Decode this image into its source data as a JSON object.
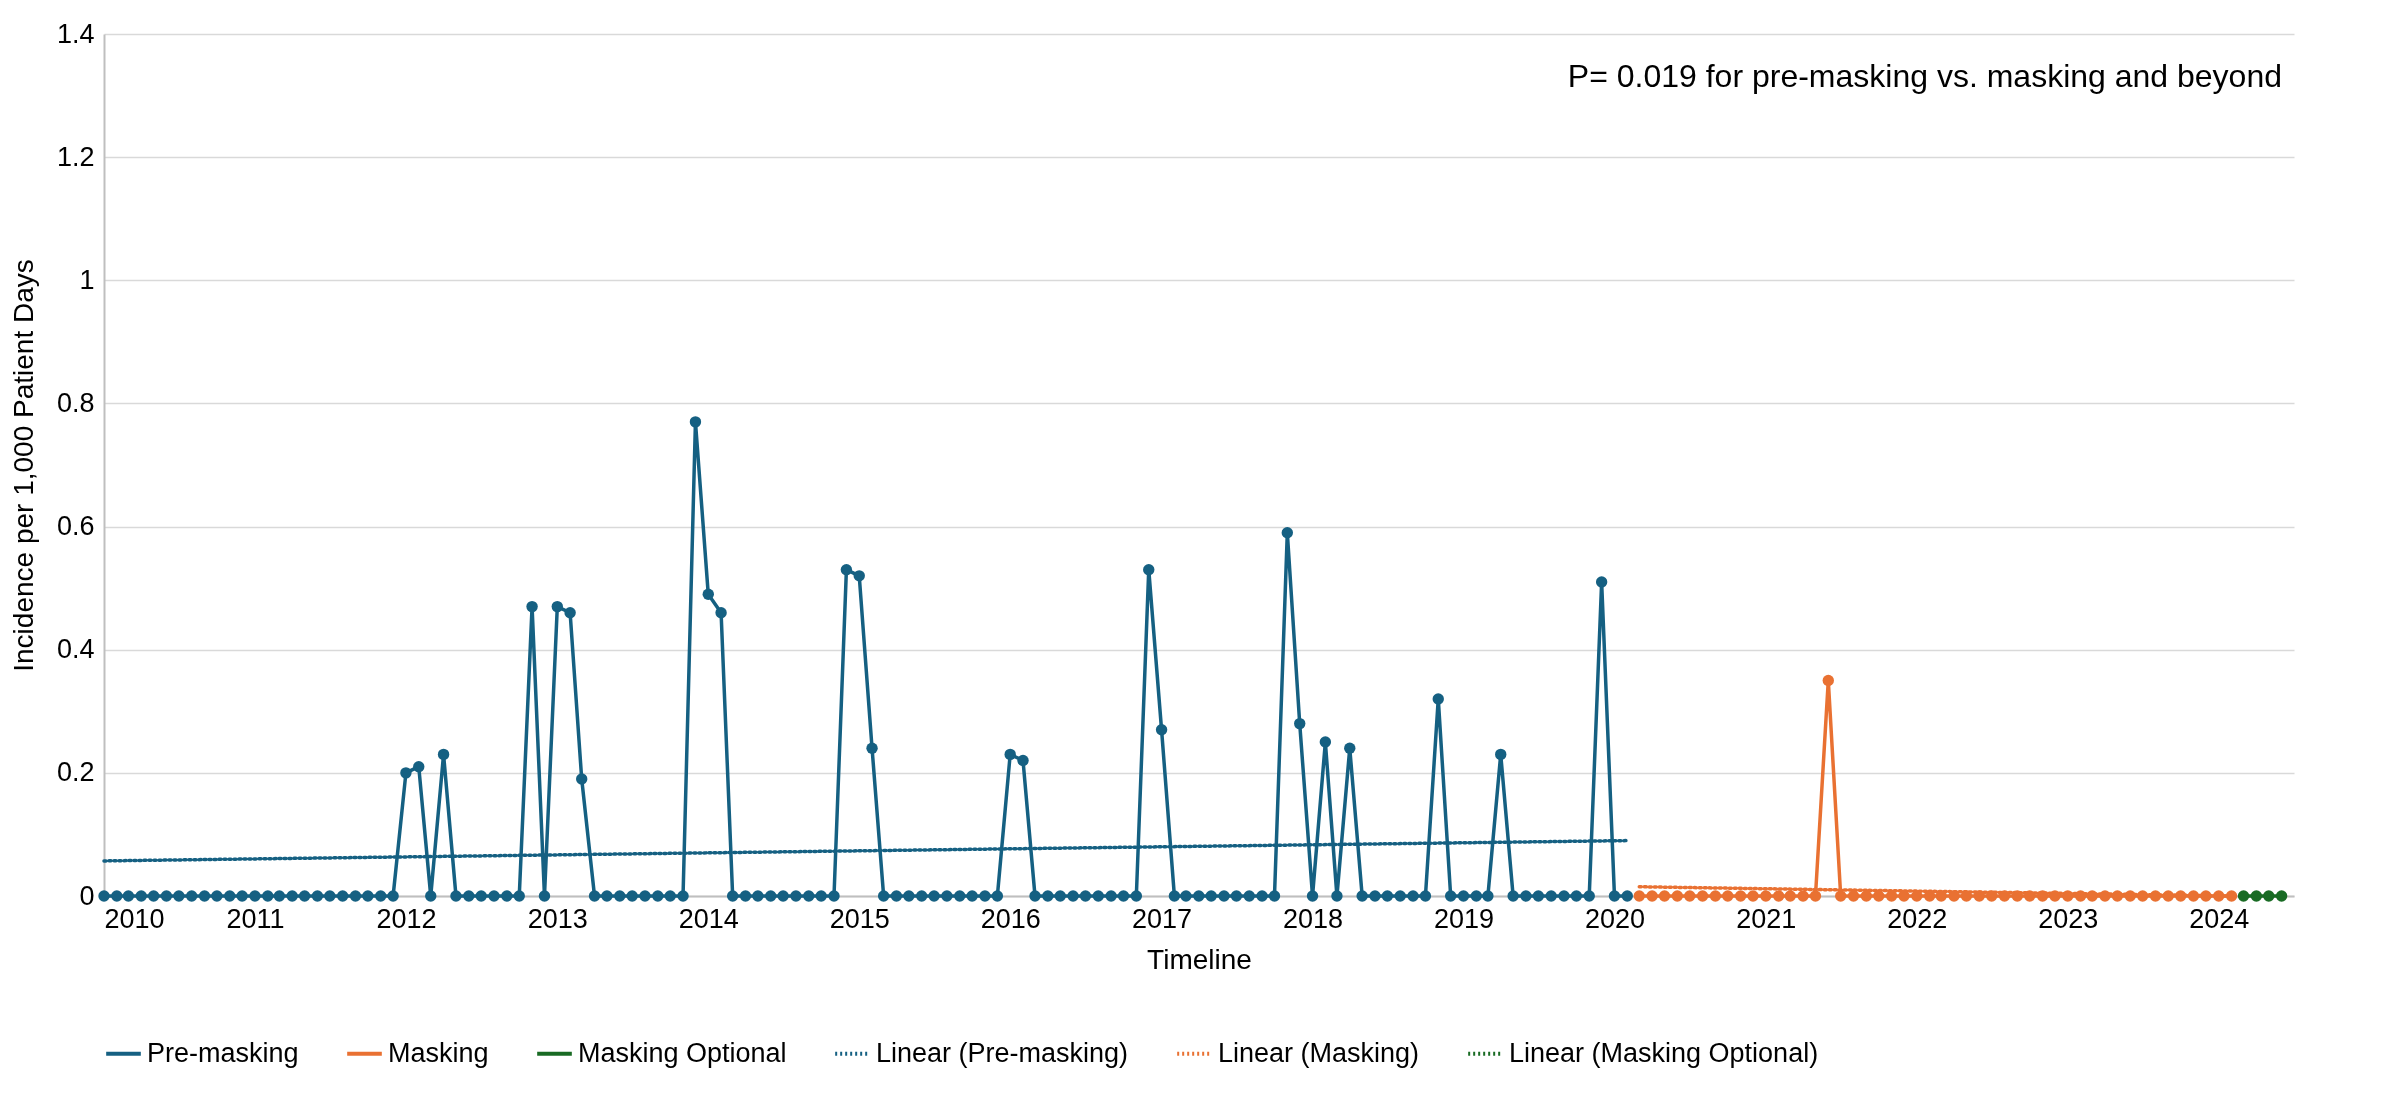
{
  "chart_data": {
    "type": "line",
    "xlabel": "Timeline",
    "ylabel": "Incidence per 1,000 Patient Days",
    "annotations": [
      "P= 0.019 for pre-masking vs. masking and beyond"
    ],
    "x": [
      "2010-01",
      "2010-02",
      "2010-03",
      "2010-04",
      "2010-05",
      "2010-06",
      "2010-07",
      "2010-08",
      "2010-09",
      "2010-10",
      "2010-11",
      "2010-12",
      "2011-01",
      "2011-02",
      "2011-03",
      "2011-04",
      "2011-05",
      "2011-06",
      "2011-07",
      "2011-08",
      "2011-09",
      "2011-10",
      "2011-11",
      "2011-12",
      "2012-01",
      "2012-02",
      "2012-03",
      "2012-04",
      "2012-05",
      "2012-06",
      "2012-07",
      "2012-08",
      "2012-09",
      "2012-10",
      "2012-11",
      "2012-12",
      "2013-01",
      "2013-02",
      "2013-03",
      "2013-04",
      "2013-05",
      "2013-06",
      "2013-07",
      "2013-08",
      "2013-09",
      "2013-10",
      "2013-11",
      "2013-12",
      "2014-01",
      "2014-02",
      "2014-03",
      "2014-04",
      "2014-05",
      "2014-06",
      "2014-07",
      "2014-08",
      "2014-09",
      "2014-10",
      "2014-11",
      "2014-12",
      "2015-01",
      "2015-02",
      "2015-03",
      "2015-04",
      "2015-05",
      "2015-06",
      "2015-07",
      "2015-08",
      "2015-09",
      "2015-10",
      "2015-11",
      "2015-12",
      "2016-01",
      "2016-02",
      "2016-03",
      "2016-04",
      "2016-05",
      "2016-06",
      "2016-07",
      "2016-08",
      "2016-09",
      "2016-10",
      "2016-11",
      "2016-12",
      "2017-01",
      "2017-02",
      "2017-03",
      "2017-04",
      "2017-05",
      "2017-06",
      "2017-07",
      "2017-08",
      "2017-09",
      "2017-10",
      "2017-11",
      "2017-12",
      "2018-01",
      "2018-02",
      "2018-03",
      "2018-04",
      "2018-05",
      "2018-06",
      "2018-07",
      "2018-08",
      "2018-09",
      "2018-10",
      "2018-11",
      "2018-12",
      "2019-01",
      "2019-02",
      "2019-03",
      "2019-04",
      "2019-05",
      "2019-06",
      "2019-07",
      "2019-08",
      "2019-09",
      "2019-10",
      "2019-11",
      "2019-12",
      "2020-01",
      "2020-02",
      "2020-03",
      "2020-04",
      "2020-05",
      "2020-06",
      "2020-07",
      "2020-08",
      "2020-09",
      "2020-10",
      "2020-11",
      "2020-12",
      "2021-01",
      "2021-02",
      "2021-03",
      "2021-04",
      "2021-05",
      "2021-06",
      "2021-07",
      "2021-08",
      "2021-09",
      "2021-10",
      "2021-11",
      "2021-12",
      "2022-01",
      "2022-02",
      "2022-03",
      "2022-04",
      "2022-05",
      "2022-06",
      "2022-07",
      "2022-08",
      "2022-09",
      "2022-10",
      "2022-11",
      "2022-12",
      "2023-01",
      "2023-02",
      "2023-03",
      "2023-04",
      "2023-05",
      "2023-06",
      "2023-07",
      "2023-08",
      "2023-09",
      "2023-10",
      "2023-11",
      "2023-12",
      "2024-01",
      "2024-02",
      "2024-03",
      "2024-04",
      "2024-05",
      "2024-06"
    ],
    "series": [
      {
        "name": "Pre-masking",
        "color": "#156082",
        "marker": "circle",
        "line_style": "solid",
        "values": [
          0,
          0,
          0,
          0,
          0,
          0,
          0,
          0,
          0,
          0,
          0,
          0,
          0,
          0,
          0,
          0,
          0,
          0,
          0,
          0,
          0,
          0,
          0,
          0,
          0.2,
          0.21,
          0,
          0.23,
          0,
          0,
          0,
          0,
          0,
          0,
          0.47,
          0,
          0.47,
          0.46,
          0.19,
          0,
          0,
          0,
          0,
          0,
          0,
          0,
          0,
          0.77,
          0.49,
          0.46,
          0,
          0,
          0,
          0,
          0,
          0,
          0,
          0,
          0,
          0.53,
          0.52,
          0.24,
          0,
          0,
          0,
          0,
          0,
          0,
          0,
          0,
          0,
          0,
          0.23,
          0.22,
          0,
          0,
          0,
          0,
          0,
          0,
          0,
          0,
          0,
          0.53,
          0.27,
          0,
          0,
          0,
          0,
          0,
          0,
          0,
          0,
          0,
          0.59,
          0.28,
          0,
          0.25,
          0,
          0.24,
          0,
          0,
          0,
          0,
          0,
          0,
          0.32,
          0,
          0,
          0,
          0,
          0.23,
          0,
          0,
          0,
          0,
          0,
          0,
          0,
          0.51,
          0,
          0,
          null,
          null,
          null,
          null,
          null,
          null,
          null,
          null,
          null,
          null,
          null,
          null,
          null,
          null,
          null,
          null,
          null,
          null,
          null,
          null,
          null,
          null,
          null,
          null,
          null,
          null,
          null,
          null,
          null,
          null,
          null,
          null,
          null,
          null,
          null,
          null,
          null,
          null,
          null,
          null,
          null,
          null,
          null,
          null,
          null,
          null,
          null,
          null,
          null,
          null,
          null,
          null
        ]
      },
      {
        "name": "Masking",
        "color": "#e97132",
        "marker": "circle",
        "line_style": "solid",
        "values": [
          null,
          null,
          null,
          null,
          null,
          null,
          null,
          null,
          null,
          null,
          null,
          null,
          null,
          null,
          null,
          null,
          null,
          null,
          null,
          null,
          null,
          null,
          null,
          null,
          null,
          null,
          null,
          null,
          null,
          null,
          null,
          null,
          null,
          null,
          null,
          null,
          null,
          null,
          null,
          null,
          null,
          null,
          null,
          null,
          null,
          null,
          null,
          null,
          null,
          null,
          null,
          null,
          null,
          null,
          null,
          null,
          null,
          null,
          null,
          null,
          null,
          null,
          null,
          null,
          null,
          null,
          null,
          null,
          null,
          null,
          null,
          null,
          null,
          null,
          null,
          null,
          null,
          null,
          null,
          null,
          null,
          null,
          null,
          null,
          null,
          null,
          null,
          null,
          null,
          null,
          null,
          null,
          null,
          null,
          null,
          null,
          null,
          null,
          null,
          null,
          null,
          null,
          null,
          null,
          null,
          null,
          null,
          null,
          null,
          null,
          null,
          null,
          null,
          null,
          null,
          null,
          null,
          null,
          null,
          null,
          null,
          null,
          0,
          0,
          0,
          0,
          0,
          0,
          0,
          0,
          0,
          0,
          0,
          0,
          0,
          0,
          0,
          0.35,
          0,
          0,
          0,
          0,
          0,
          0,
          0,
          0,
          0,
          0,
          0,
          0,
          0,
          0,
          0,
          0,
          0,
          0,
          0,
          0,
          0,
          0,
          0,
          0,
          0,
          0,
          0,
          0,
          0,
          0,
          0,
          0,
          null,
          null,
          null,
          null
        ]
      },
      {
        "name": "Masking Optional",
        "color": "#196b24",
        "marker": "circle",
        "line_style": "solid",
        "values": [
          null,
          null,
          null,
          null,
          null,
          null,
          null,
          null,
          null,
          null,
          null,
          null,
          null,
          null,
          null,
          null,
          null,
          null,
          null,
          null,
          null,
          null,
          null,
          null,
          null,
          null,
          null,
          null,
          null,
          null,
          null,
          null,
          null,
          null,
          null,
          null,
          null,
          null,
          null,
          null,
          null,
          null,
          null,
          null,
          null,
          null,
          null,
          null,
          null,
          null,
          null,
          null,
          null,
          null,
          null,
          null,
          null,
          null,
          null,
          null,
          null,
          null,
          null,
          null,
          null,
          null,
          null,
          null,
          null,
          null,
          null,
          null,
          null,
          null,
          null,
          null,
          null,
          null,
          null,
          null,
          null,
          null,
          null,
          null,
          null,
          null,
          null,
          null,
          null,
          null,
          null,
          null,
          null,
          null,
          null,
          null,
          null,
          null,
          null,
          null,
          null,
          null,
          null,
          null,
          null,
          null,
          null,
          null,
          null,
          null,
          null,
          null,
          null,
          null,
          null,
          null,
          null,
          null,
          null,
          null,
          null,
          null,
          null,
          null,
          null,
          null,
          null,
          null,
          null,
          null,
          null,
          null,
          null,
          null,
          null,
          null,
          null,
          null,
          null,
          null,
          null,
          null,
          null,
          null,
          null,
          null,
          null,
          null,
          null,
          null,
          null,
          null,
          null,
          null,
          null,
          null,
          null,
          null,
          null,
          null,
          null,
          null,
          null,
          null,
          null,
          null,
          null,
          null,
          null,
          null,
          0,
          0,
          0,
          0
        ]
      },
      {
        "name": "Linear (Pre-masking)",
        "color": "#156082",
        "marker": "none",
        "line_style": "dotted",
        "x": [
          "2010-01",
          "2020-02"
        ],
        "values": [
          0.057,
          0.09
        ]
      },
      {
        "name": "Linear (Masking)",
        "color": "#e97132",
        "marker": "none",
        "line_style": "dotted",
        "x": [
          "2020-03",
          "2024-02"
        ],
        "values": [
          0.015,
          0
        ]
      },
      {
        "name": "Linear (Masking Optional)",
        "color": "#196b24",
        "line_style": "dotted",
        "values": [
          null,
          null,
          null,
          null,
          null,
          null,
          null,
          null,
          null,
          null,
          null,
          null,
          null,
          null,
          null,
          null,
          null,
          null,
          null,
          null,
          null,
          null,
          null,
          null,
          null,
          null,
          null,
          null,
          null,
          null,
          null,
          null,
          null,
          null,
          null,
          null,
          null,
          null,
          null,
          null,
          null,
          null,
          null,
          null,
          null,
          null,
          null,
          null,
          null,
          null,
          null,
          null,
          null,
          null,
          null,
          null,
          null,
          null,
          null,
          null,
          null,
          null,
          null,
          null,
          null,
          null,
          null,
          null,
          null,
          null,
          null,
          null,
          null,
          null,
          null,
          null,
          null,
          null,
          null,
          null,
          null,
          null,
          null,
          null,
          null,
          null,
          null,
          null,
          null,
          null,
          null,
          null,
          null,
          null,
          null,
          null,
          null,
          null,
          null,
          null,
          null,
          null,
          null,
          null,
          null,
          null,
          null,
          null,
          null,
          null,
          null,
          null,
          null,
          null,
          null,
          null,
          null,
          null,
          null,
          null,
          null,
          null,
          null,
          null,
          null,
          null,
          null,
          null,
          null,
          null,
          null,
          null,
          null,
          null,
          null,
          null,
          null,
          null,
          null,
          null,
          null,
          null,
          null,
          null,
          null,
          null,
          null,
          null,
          null,
          null,
          null,
          null,
          null,
          null,
          null,
          null,
          null,
          null,
          null,
          null,
          null,
          null,
          null,
          null,
          null,
          null,
          null,
          null,
          null,
          null,
          null,
          null,
          null,
          null
        ]
      }
    ],
    "xlim": [
      "2010-01",
      "2024-07"
    ],
    "xticks": [
      "2010",
      "2011",
      "2012",
      "2013",
      "2014",
      "2015",
      "2016",
      "2017",
      "2018",
      "2019",
      "2020",
      "2021",
      "2022",
      "2023",
      "2024"
    ],
    "ylim": [
      0,
      1.4
    ],
    "yticks": [
      0,
      0.2,
      0.4,
      0.6,
      0.8,
      1,
      1.2,
      1.4
    ],
    "grid": "y",
    "legend": "bottom"
  }
}
